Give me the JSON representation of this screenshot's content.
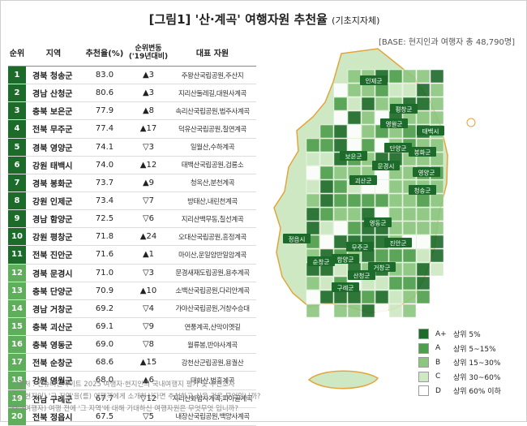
{
  "title": "[그림1] '산·계곡' 여행자원 추천율",
  "subtitle": "(기초지자체)",
  "base_note": "[BASE: 현지인과 여행자 총 48,790명]",
  "table": {
    "headers": {
      "rank": "순위",
      "region": "지역",
      "rate": "추천율(%)",
      "change": "순위변동\n('19년대비)",
      "resource": "대표 자원"
    },
    "rows": [
      {
        "rank": "1",
        "region": "경북 청송군",
        "rate": "83.0",
        "change": "▲3",
        "resource": "주왕산국립공원,주산지"
      },
      {
        "rank": "2",
        "region": "경남 산청군",
        "rate": "80.6",
        "change": "▲3",
        "resource": "지리산둘레길,대원사계곡"
      },
      {
        "rank": "3",
        "region": "충북 보은군",
        "rate": "77.9",
        "change": "▲8",
        "resource": "속리산국립공원,법주사계곡"
      },
      {
        "rank": "4",
        "region": "전북 무주군",
        "rate": "77.4",
        "change": "▲17",
        "resource": "덕유산국립공원,칠연계곡"
      },
      {
        "rank": "5",
        "region": "경북 영양군",
        "rate": "74.1",
        "change": "▽3",
        "resource": "일월산,수하계곡"
      },
      {
        "rank": "6",
        "region": "강원 태백시",
        "rate": "74.0",
        "change": "▲12",
        "resource": "태백산국립공원,검룡소"
      },
      {
        "rank": "7",
        "region": "경북 봉화군",
        "rate": "73.7",
        "change": "▲9",
        "resource": "청옥산,분천계곡"
      },
      {
        "rank": "8",
        "region": "강원 인제군",
        "rate": "73.4",
        "change": "▽7",
        "resource": "방태산,내린천계곡"
      },
      {
        "rank": "9",
        "region": "경남 함양군",
        "rate": "72.5",
        "change": "▽6",
        "resource": "지리산백무동,칠선계곡"
      },
      {
        "rank": "10",
        "region": "강원 평창군",
        "rate": "71.8",
        "change": "▲24",
        "resource": "오대산국립공원,흥정계곡"
      },
      {
        "rank": "11",
        "region": "전북 진안군",
        "rate": "71.6",
        "change": "▲1",
        "resource": "마이산,운일암반일암계곡"
      },
      {
        "rank": "12",
        "region": "경북 문경시",
        "rate": "71.0",
        "change": "▽3",
        "resource": "문경새재도립공원,용추계곡"
      },
      {
        "rank": "13",
        "region": "충북 단양군",
        "rate": "70.9",
        "change": "▲10",
        "resource": "소백산국립공원,다리안계곡"
      },
      {
        "rank": "14",
        "region": "경남 거창군",
        "rate": "69.2",
        "change": "▽4",
        "resource": "가야산국립공원,거창수승대"
      },
      {
        "rank": "15",
        "region": "충북 괴산군",
        "rate": "69.1",
        "change": "▽9",
        "resource": "연풍계곡,산막이옛길"
      },
      {
        "rank": "16",
        "region": "충북 영동군",
        "rate": "69.0",
        "change": "▽8",
        "resource": "월류봉,반야사계곡"
      },
      {
        "rank": "17",
        "region": "전북 순창군",
        "rate": "68.6",
        "change": "▲15",
        "resource": "강천산군립공원,용궐산"
      },
      {
        "rank": "18",
        "region": "강원 영월군",
        "rate": "68.0",
        "change": "▲6",
        "resource": "태화산,법흥계곡"
      },
      {
        "rank": "19",
        "region": "전남 구례군",
        "rate": "67.7",
        "change": "▽12",
        "resource": "지리산화엄사계곡,피아골계곡"
      },
      {
        "rank": "20",
        "region": "전북 정읍시",
        "rate": "67.5",
        "change": "▽5",
        "resource": "내장산국립공원,백양사계곡"
      }
    ]
  },
  "map_labels": [
    "인제군",
    "평창군",
    "영월군",
    "태백시",
    "단양군",
    "봉화군",
    "영양군",
    "문경시",
    "청송군",
    "보은군",
    "괴산군",
    "영동군",
    "무주군",
    "진안군",
    "거창군",
    "함양군",
    "산청군",
    "정읍시",
    "순창군",
    "구례군"
  ],
  "legend": [
    {
      "grade": "A+",
      "label": "상위 5%",
      "color": "#1d6b2b"
    },
    {
      "grade": "A",
      "label": "상위 5~15%",
      "color": "#4e9e4c"
    },
    {
      "grade": "B",
      "label": "상위 15~30%",
      "color": "#8cc680"
    },
    {
      "grade": "C",
      "label": "상위 30~60%",
      "color": "#cfe8c4"
    },
    {
      "grade": "D",
      "label": "상위 60% 이하",
      "color": "#ffffff"
    }
  ],
  "footnotes": [
    "* 출처 : 컨슈머인사이트 2025 여행자·현지인의 국내여행지 평가 및 추천조사",
    "Q. (현지인) '그 지역'을(를) 여행객에게 소개하신다면 추천하고 싶은 것은 무엇입니까?",
    "Q. (여행자) 여행 전에 '그 지역'에 대해 기대하신 여행자원은 무엇무엇 입니까?"
  ],
  "chart_data": {
    "type": "table",
    "title": "[그림1] '산·계곡' 여행자원 추천율 (기초지자체)",
    "columns": [
      "순위",
      "지역",
      "추천율(%)",
      "순위변동('19년대비)",
      "대표 자원"
    ],
    "categories": [
      "경북 청송군",
      "경남 산청군",
      "충북 보은군",
      "전북 무주군",
      "경북 영양군",
      "강원 태백시",
      "경북 봉화군",
      "강원 인제군",
      "경남 함양군",
      "강원 평창군",
      "전북 진안군",
      "경북 문경시",
      "충북 단양군",
      "경남 거창군",
      "충북 괴산군",
      "충북 영동군",
      "전북 순창군",
      "강원 영월군",
      "전남 구례군",
      "전북 정읍시"
    ],
    "values": [
      83.0,
      80.6,
      77.9,
      77.4,
      74.1,
      74.0,
      73.7,
      73.4,
      72.5,
      71.8,
      71.6,
      71.0,
      70.9,
      69.2,
      69.1,
      69.0,
      68.6,
      68.0,
      67.7,
      67.5
    ],
    "rank_change": [
      3,
      3,
      8,
      17,
      -3,
      12,
      9,
      -7,
      -6,
      24,
      1,
      -3,
      10,
      -4,
      -9,
      -8,
      15,
      6,
      -12,
      -5
    ]
  }
}
